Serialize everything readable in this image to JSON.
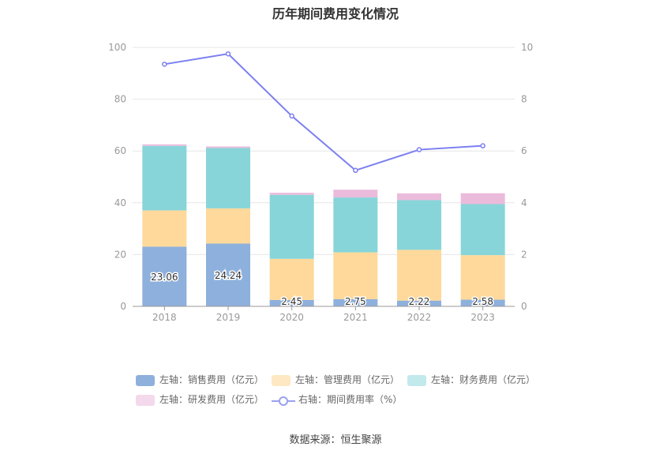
{
  "chart_data": {
    "type": "bar",
    "title": "历年期间费用变化情况",
    "categories": [
      "2018",
      "2019",
      "2020",
      "2021",
      "2022",
      "2023"
    ],
    "y_left": {
      "ticks": [
        0,
        20,
        40,
        60,
        80,
        100
      ],
      "ylim": [
        0,
        100
      ]
    },
    "y_right": {
      "ticks": [
        0,
        2,
        4,
        6,
        8,
        10
      ],
      "ylim": [
        0,
        10
      ]
    },
    "stacked": true,
    "series": [
      {
        "name": "左轴：销售费用（亿元）",
        "type": "bar",
        "axis": "left",
        "color": "#8eb0dc",
        "values": [
          23.06,
          24.24,
          2.45,
          2.75,
          2.22,
          2.58
        ],
        "labels": [
          "23.06",
          "24.24",
          "2.45",
          "2.75",
          "2.22",
          "2.58"
        ]
      },
      {
        "name": "左轴：管理费用（亿元）",
        "type": "bar",
        "axis": "left",
        "color": "#fed99b",
        "values": [
          14.0,
          13.6,
          15.9,
          18.1,
          19.6,
          17.2
        ]
      },
      {
        "name": "左轴：财务费用（亿元）",
        "type": "bar",
        "axis": "left",
        "color": "#87d5d9",
        "values": [
          24.9,
          23.3,
          24.7,
          21.2,
          19.2,
          19.7
        ]
      },
      {
        "name": "左轴：研发费用（亿元）",
        "type": "bar",
        "axis": "left",
        "color": "#ebbbdb",
        "values": [
          0.6,
          0.6,
          0.8,
          3.0,
          2.6,
          4.2
        ]
      },
      {
        "name": "右轴：期间费用率（%）",
        "type": "line",
        "axis": "right",
        "color": "#7b7ff0",
        "values": [
          9.35,
          9.75,
          7.35,
          5.25,
          6.05,
          6.2
        ]
      }
    ],
    "legend_position": "bottom",
    "grid": true
  },
  "source_text": "数据来源：恒生聚源"
}
